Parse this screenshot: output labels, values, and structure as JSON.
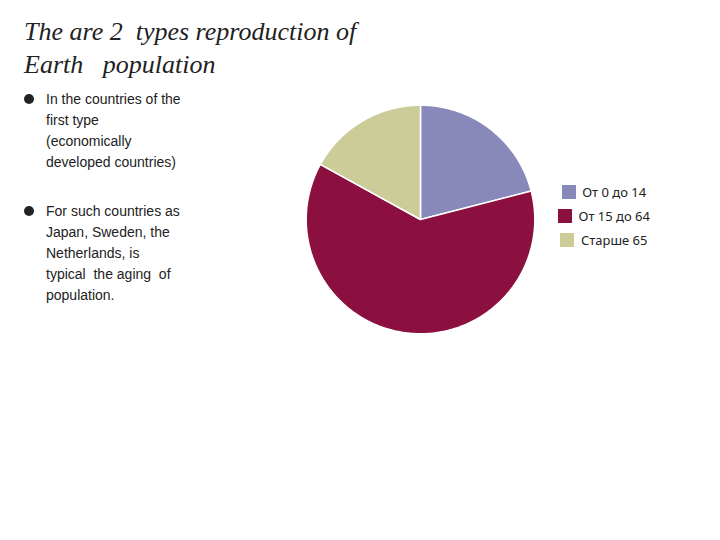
{
  "chart_data": {
    "type": "pie",
    "title": "The are 2  types reproduction of\nEarth   population",
    "categories": [
      "От 0 до 14",
      "От 15 до 64",
      "Старше 65"
    ],
    "values": [
      21,
      62,
      17
    ],
    "colors": [
      "#8888BB",
      "#8B1040",
      "#CCCC99"
    ],
    "annotations": [
      "In the countries of the\nfirst type\n(economically\ndeveloped countries)",
      "For such countries as\nJapan, Sweden, the\nNetherlands, is\ntypical  the aging  of\npopulation."
    ],
    "legend": "right"
  }
}
